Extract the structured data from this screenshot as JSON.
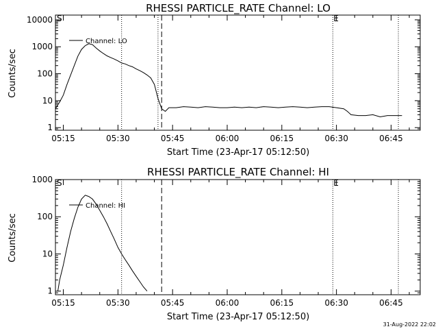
{
  "chart_data": [
    {
      "type": "line",
      "title": "RHESSI PARTICLE_RATE Channel: LO",
      "xlabel": "Start Time (23-Apr-17 05:12:50)",
      "ylabel": "Counts/sec",
      "yscale": "log",
      "ylim": [
        0.8,
        15000
      ],
      "xlim": [
        "05:12:50",
        "06:53:00"
      ],
      "ytick_labels": [
        "1",
        "10",
        "100",
        "1000",
        "10000"
      ],
      "ytick_values": [
        1,
        10,
        100,
        1000,
        10000
      ],
      "xtick_labels": [
        "05:15",
        "05:30",
        "05:45",
        "06:00",
        "06:15",
        "06:30",
        "06:45"
      ],
      "xtick_values": [
        "05:15",
        "05:30",
        "05:45",
        "06:00",
        "06:15",
        "06:30",
        "06:45"
      ],
      "series": [
        {
          "name": "Channel: LO",
          "x": [
            "05:12:50",
            "05:14:00",
            "05:15:00",
            "05:16:00",
            "05:17:00",
            "05:18:00",
            "05:19:00",
            "05:20:00",
            "05:21:00",
            "05:22:00",
            "05:23:00",
            "05:24:00",
            "05:25:00",
            "05:26:00",
            "05:27:00",
            "05:28:00",
            "05:29:00",
            "05:30:00",
            "05:31:00",
            "05:32:00",
            "05:33:00",
            "05:34:00",
            "05:35:00",
            "05:36:00",
            "05:37:00",
            "05:38:00",
            "05:39:00",
            "05:40:00",
            "05:41:00",
            "05:42:00",
            "05:43:00",
            "05:44:00",
            "05:46:00",
            "05:48:00",
            "05:50:00",
            "05:52:00",
            "05:54:00",
            "05:56:00",
            "05:58:00",
            "06:00:00",
            "06:02:00",
            "06:04:00",
            "06:06:00",
            "06:08:00",
            "06:10:00",
            "06:12:00",
            "06:14:00",
            "06:16:00",
            "06:18:00",
            "06:20:00",
            "06:22:00",
            "06:24:00",
            "06:26:00",
            "06:28:00",
            "06:30:00",
            "06:32:00",
            "06:33:00",
            "06:34:00",
            "06:36:00",
            "06:38:00",
            "06:40:00",
            "06:42:00",
            "06:44:00",
            "06:46:00",
            "06:48:00"
          ],
          "y": [
            5,
            9,
            16,
            40,
            90,
            200,
            450,
            800,
            1100,
            1300,
            1200,
            900,
            700,
            560,
            460,
            400,
            350,
            300,
            250,
            230,
            200,
            180,
            150,
            130,
            110,
            90,
            70,
            40,
            12,
            5,
            4,
            5.5,
            5.5,
            6,
            5.8,
            5.5,
            6,
            5.8,
            5.5,
            5.5,
            5.8,
            5.5,
            5.8,
            5.5,
            6,
            5.8,
            5.5,
            5.8,
            6,
            5.8,
            5.5,
            5.8,
            6,
            6,
            5.5,
            5,
            4,
            3,
            2.8,
            2.8,
            3,
            2.5,
            2.8,
            2.8,
            2.8
          ]
        }
      ],
      "vlines_dotted": [
        "05:31:00",
        "05:41:00",
        "06:29:00",
        "06:47:00"
      ],
      "vlines_dashed": [
        "05:42:00"
      ],
      "markers": [
        "S",
        "E"
      ]
    },
    {
      "type": "line",
      "title": "RHESSI PARTICLE_RATE Channel: HI",
      "xlabel": "Start Time (23-Apr-17 05:12:50)",
      "ylabel": "Counts/sec",
      "yscale": "log",
      "ylim": [
        0.8,
        1000
      ],
      "xlim": [
        "05:12:50",
        "06:53:00"
      ],
      "ytick_labels": [
        "1",
        "10",
        "100",
        "1000"
      ],
      "ytick_values": [
        1,
        10,
        100,
        1000
      ],
      "xtick_labels": [
        "05:15",
        "05:30",
        "05:45",
        "06:00",
        "06:15",
        "06:30",
        "06:45"
      ],
      "xtick_values": [
        "05:15",
        "05:30",
        "05:45",
        "06:00",
        "06:15",
        "06:30",
        "06:45"
      ],
      "series": [
        {
          "name": "Channel: HI",
          "x": [
            "05:13:30",
            "05:14:00",
            "05:15:00",
            "05:16:00",
            "05:17:00",
            "05:18:00",
            "05:19:00",
            "05:20:00",
            "05:21:00",
            "05:22:00",
            "05:23:00",
            "05:24:00",
            "05:25:00",
            "05:26:00",
            "05:27:00",
            "05:28:00",
            "05:29:00",
            "05:30:00",
            "05:31:00",
            "05:32:00",
            "05:33:00",
            "05:34:00",
            "05:35:00",
            "05:36:00",
            "05:37:00",
            "05:38:00"
          ],
          "y": [
            1,
            2,
            5,
            15,
            40,
            90,
            180,
            300,
            380,
            350,
            300,
            220,
            150,
            100,
            65,
            40,
            25,
            15,
            10,
            7,
            5,
            3.5,
            2.5,
            1.8,
            1.3,
            1
          ]
        }
      ],
      "vlines_dotted": [
        "05:31:00",
        "06:29:00",
        "06:47:00"
      ],
      "vlines_dashed": [
        "05:42:00"
      ],
      "markers": [
        "S",
        "E"
      ]
    }
  ],
  "footer": {
    "timestamp": "31-Aug-2022 22:02"
  }
}
